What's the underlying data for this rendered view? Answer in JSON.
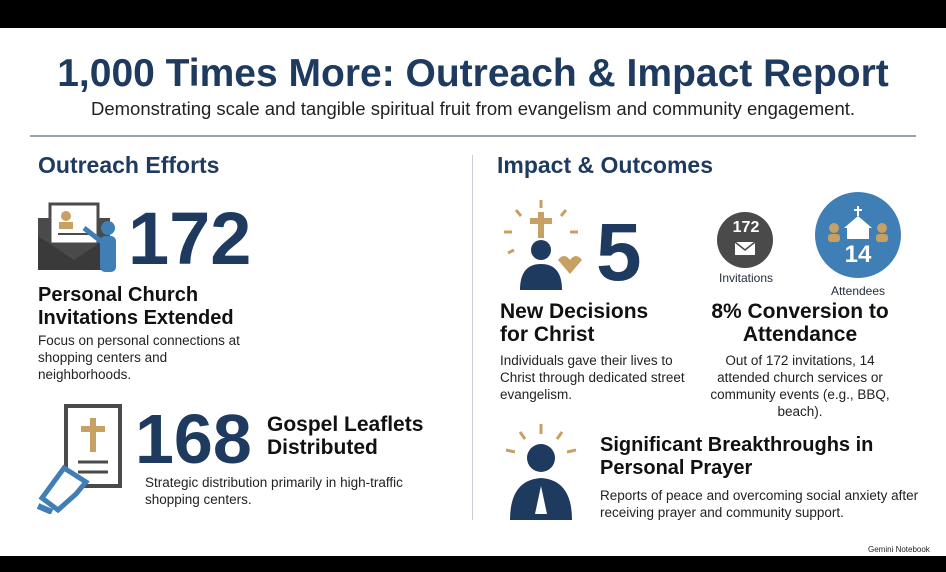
{
  "header": {
    "title": "1,000 Times More: Outreach & Impact Report",
    "subtitle": "Demonstrating scale and tangible spiritual fruit from evangelism and community engagement."
  },
  "outreach": {
    "heading": "Outreach Efforts",
    "invitations": {
      "number": 172,
      "label": "Personal Church Invitations Extended",
      "description": "Focus on personal connections at shopping centers and neighborhoods."
    },
    "leaflets": {
      "number": 168,
      "label": "Gospel Leaflets Distributed",
      "description": "Strategic distribution primarily in high-traffic shopping centers."
    }
  },
  "impact": {
    "heading": "Impact & Outcomes",
    "decisions": {
      "number": 5,
      "label": "New Decisions for Christ",
      "description": "Individuals gave their lives to Christ through dedicated street evangelism."
    },
    "conversion": {
      "invitations": 172,
      "invitations_label": "Invitations",
      "attendees": 14,
      "attendees_label": "Attendees",
      "label": "8% Conversion to Attendance",
      "description": "Out of 172 invitations, 14 attended church services or community events (e.g., BBQ, beach)."
    },
    "prayer": {
      "label": "Significant Breakthroughs in Personal Prayer",
      "description": "Reports of peace and overcoming social anxiety after receiving prayer and community support."
    }
  },
  "footer": {
    "brand": "Gemini Notebook"
  }
}
